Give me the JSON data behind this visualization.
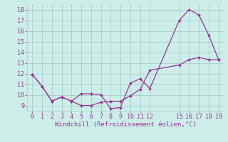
{
  "xlabel": "Windchill (Refroidissement éolien,°C)",
  "line1_x": [
    0,
    1,
    2,
    3,
    4,
    5,
    6,
    7,
    8,
    9,
    10,
    11,
    12,
    15,
    16,
    17,
    18,
    19
  ],
  "line1_y": [
    11.9,
    10.8,
    9.4,
    9.8,
    9.4,
    10.1,
    10.1,
    10.0,
    8.7,
    8.8,
    11.1,
    11.5,
    10.6,
    17.0,
    18.0,
    17.5,
    15.6,
    13.3
  ],
  "line2_x": [
    0,
    1,
    2,
    3,
    4,
    5,
    6,
    7,
    8,
    9,
    10,
    11,
    12,
    15,
    16,
    17,
    18,
    19
  ],
  "line2_y": [
    11.9,
    10.8,
    9.4,
    9.8,
    9.4,
    9.0,
    9.0,
    9.3,
    9.4,
    9.4,
    9.9,
    10.5,
    12.3,
    12.8,
    13.3,
    13.5,
    13.3,
    13.3
  ],
  "line_color": "#993399",
  "bg_color": "#cceee8",
  "grid_color": "#aacccc",
  "xlim": [
    -0.5,
    19.5
  ],
  "ylim": [
    8.5,
    18.5
  ],
  "yticks": [
    9,
    10,
    11,
    12,
    13,
    14,
    15,
    16,
    17,
    18
  ],
  "xticks": [
    0,
    1,
    2,
    3,
    4,
    5,
    6,
    7,
    8,
    9,
    10,
    11,
    12,
    15,
    16,
    17,
    18,
    19
  ],
  "tick_fontsize": 6,
  "label_fontsize": 6.5
}
